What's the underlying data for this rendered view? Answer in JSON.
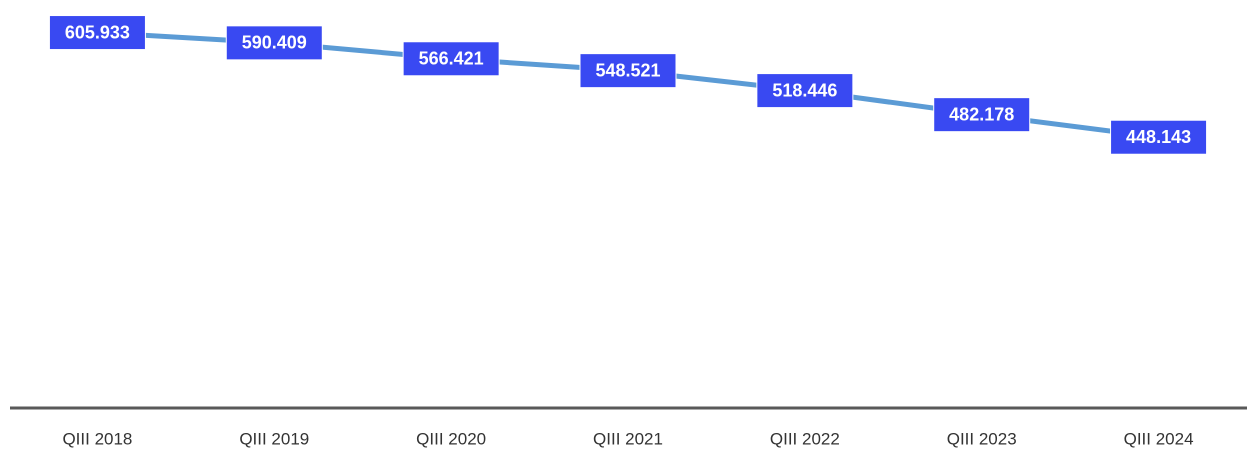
{
  "chart_data": {
    "type": "line",
    "categories": [
      "QIII 2018",
      "QIII 2019",
      "QIII 2020",
      "QIII 2021",
      "QIII 2022",
      "QIII 2023",
      "QIII 2024"
    ],
    "values": [
      605.933,
      590.409,
      566.421,
      548.521,
      518.446,
      482.178,
      448.143
    ],
    "color": "#5b9bd5",
    "label_color": "#3949f2",
    "ylim": [
      40,
      655
    ]
  }
}
